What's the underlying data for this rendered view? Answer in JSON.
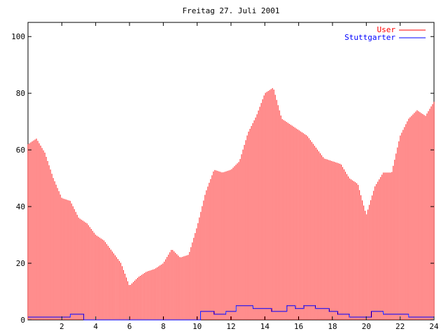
{
  "chart_data": {
    "type": "line",
    "title": "Freitag 27. Juli 2001",
    "xlabel": "",
    "ylabel": "",
    "xlim": [
      0,
      24
    ],
    "ylim": [
      0,
      105
    ],
    "xticks": [
      2,
      4,
      6,
      8,
      10,
      12,
      14,
      16,
      18,
      20,
      22,
      24
    ],
    "yticks": [
      0,
      20,
      40,
      60,
      80,
      100
    ],
    "grid": false,
    "legend_position": "top-right",
    "series": [
      {
        "name": "User",
        "style": "impulses",
        "color": "#ff0000",
        "x": [
          0.0,
          0.5,
          1.0,
          1.5,
          2.0,
          2.5,
          3.0,
          3.5,
          4.0,
          4.5,
          5.0,
          5.5,
          6.0,
          6.5,
          7.0,
          7.5,
          8.0,
          8.5,
          9.0,
          9.5,
          10.0,
          10.5,
          11.0,
          11.5,
          12.0,
          12.5,
          13.0,
          13.5,
          14.0,
          14.5,
          15.0,
          15.5,
          16.0,
          16.5,
          17.0,
          17.5,
          18.0,
          18.5,
          19.0,
          19.5,
          20.0,
          20.5,
          21.0,
          21.5,
          22.0,
          22.5,
          23.0,
          23.5,
          24.0
        ],
        "values": [
          62,
          64,
          59,
          50,
          43,
          42,
          36,
          34,
          30,
          28,
          24,
          20,
          12,
          15,
          17,
          18,
          20,
          25,
          22,
          23,
          33,
          45,
          53,
          52,
          53,
          56,
          66,
          72,
          80,
          82,
          71,
          69,
          67,
          65,
          61,
          57,
          56,
          55,
          50,
          48,
          37,
          47,
          52,
          52,
          65,
          71,
          74,
          72,
          77
        ]
      },
      {
        "name": "Stuttgarter",
        "style": "steps",
        "color": "#0000ff",
        "x": [
          0.0,
          1.0,
          2.5,
          3.3,
          10.2,
          11.0,
          11.7,
          12.3,
          13.3,
          14.4,
          15.3,
          15.8,
          16.3,
          17.0,
          17.8,
          18.3,
          19.0,
          20.3,
          21.0,
          22.5,
          24.0
        ],
        "values": [
          1,
          1,
          2,
          0,
          3,
          2,
          3,
          5,
          4,
          3,
          5,
          4,
          5,
          4,
          3,
          2,
          1,
          3,
          2,
          1,
          1
        ]
      }
    ]
  }
}
